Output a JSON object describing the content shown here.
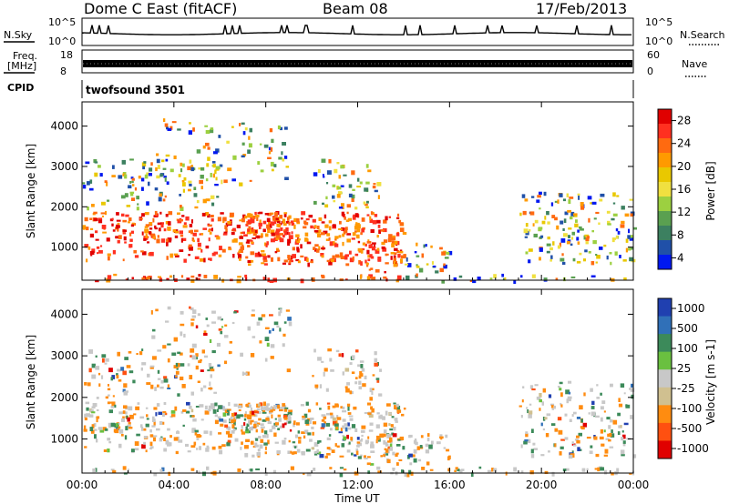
{
  "header": {
    "station": "Dome C East (fitACF)",
    "beam": "Beam 08",
    "date": "17/Feb/2013"
  },
  "top_panels": {
    "nsky_label": "N.Sky",
    "nsky_ticks": [
      "10^5",
      "10^0"
    ],
    "nsearch_label": "N.Search",
    "nsearch_ticks": [
      "10^5",
      "10^0"
    ],
    "freq_label_1": "Freq.",
    "freq_label_2": "[MHz]",
    "freq_ticks": [
      "18",
      "8"
    ],
    "nave_label": "Nave",
    "nave_ticks": [
      "60",
      "0"
    ],
    "cpid_label": "CPID",
    "cpid_value": "twofsound 3501"
  },
  "chart_data": [
    {
      "type": "heatmap",
      "name": "power",
      "ylabel": "Slant Range [km]",
      "yticks": [
        "1000",
        "2000",
        "3000",
        "4000"
      ],
      "colorbar_label": "Power [dB]",
      "colorbar_ticks": [
        "28",
        "24",
        "20",
        "16",
        "12",
        "8",
        "4"
      ],
      "colorbar_colors": [
        "#e00000",
        "#ff3020",
        "#ff6a10",
        "#ff9a00",
        "#e9c800",
        "#f0e040",
        "#9cd040",
        "#5aa050",
        "#3c8060",
        "#2050a8",
        "#0018f0"
      ]
    },
    {
      "type": "heatmap",
      "name": "velocity",
      "ylabel": "Slant Range [km]",
      "yticks": [
        "1000",
        "2000",
        "3000",
        "4000"
      ],
      "colorbar_label": "Velocity [m s-1]",
      "colorbar_ticks": [
        "1000",
        "500",
        "100",
        "25",
        "-25",
        "-100",
        "-500",
        "-1000"
      ],
      "colorbar_colors": [
        "#2040b0",
        "#3070b8",
        "#3c8a5a",
        "#6ac040",
        "#c8c8c8",
        "#d0c090",
        "#ff8c10",
        "#ff5010",
        "#e00000"
      ]
    }
  ],
  "xaxis": {
    "label": "Time UT",
    "ticks": [
      "00:00",
      "04:00",
      "08:00",
      "12:00",
      "16:00",
      "20:00",
      "00:00"
    ]
  }
}
